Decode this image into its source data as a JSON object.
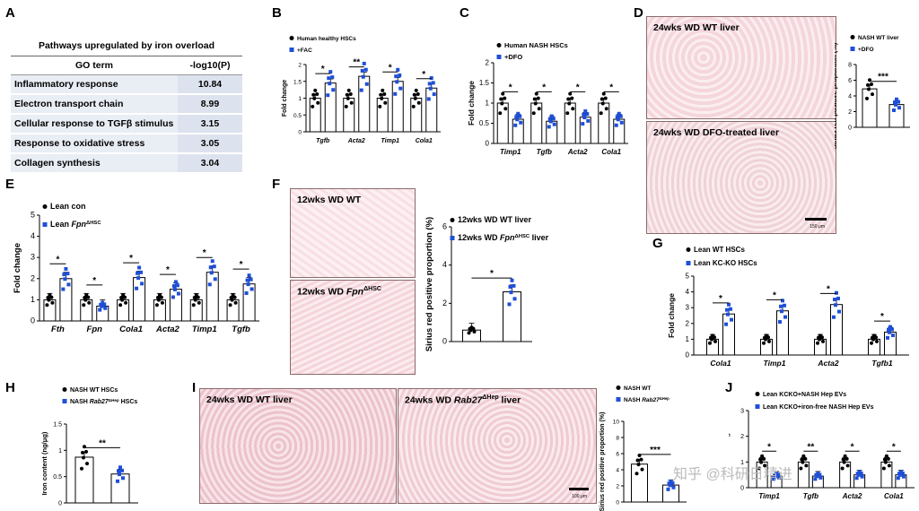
{
  "panels": {
    "A": {
      "letter": "A",
      "table_title": "Pathways upregulated by iron overload",
      "col_term": "GO term",
      "col_value": "-log10(P)",
      "rows": [
        {
          "term": "Inflammatory response",
          "value": "10.84"
        },
        {
          "term": "Electron transport chain",
          "value": "8.99"
        },
        {
          "term": "Cellular response to TGFβ stimulus",
          "value": "3.15"
        },
        {
          "term": "Response to oxidative stress",
          "value": "3.05"
        },
        {
          "term": "Collagen synthesis",
          "value": "3.04"
        }
      ]
    },
    "B": {
      "letter": "B",
      "ylabel": "Fold change",
      "legend": [
        "Human healthy HSCs",
        "+FAC"
      ],
      "sig": [
        "*",
        "**",
        "*",
        "*"
      ]
    },
    "C": {
      "letter": "C",
      "ylabel": "Fold change",
      "legend": [
        "Human NASH HSCs",
        "+DFO"
      ],
      "sig": [
        "*",
        "*",
        "*",
        "*"
      ]
    },
    "D": {
      "letter": "D",
      "img1": "24wks WD WT liver",
      "img2": "24wks WD DFO-treated liver",
      "ylabel": "Sirius red positive proportion (%)",
      "legend": [
        "NASH WT liver",
        "+DFO"
      ],
      "sig": [
        "***"
      ],
      "scale": "150 μm"
    },
    "E": {
      "letter": "E",
      "ylabel": "Fold change",
      "legend": [
        "Lean con",
        "Lean Fpn",
        "ΔHSC"
      ],
      "sig": [
        "*",
        "*",
        "*",
        "*",
        "*",
        "*"
      ]
    },
    "F": {
      "letter": "F",
      "img1": "12wks WD WT",
      "img2_a": "12wks WD ",
      "img2_b": "Fpn",
      "img2_c": "ΔHSC",
      "ylabel": "Sirius red positive proportion (%)",
      "legend": [
        "12wks WD WT liver",
        "12wks WD Fpn",
        "ΔHSC",
        " liver"
      ],
      "sig": [
        "*"
      ]
    },
    "G": {
      "letter": "G",
      "ylabel": "Fold change",
      "legend": [
        "Lean WT HSCs",
        "Lean KC-KO HSCs"
      ],
      "sig": [
        "*",
        "*",
        "*",
        "*"
      ]
    },
    "H": {
      "letter": "H",
      "ylabel": "Iron content (ng/μg)",
      "legend": [
        "NASH WT HSCs",
        "NASH Rab27",
        "ΔHep",
        " HSCs"
      ],
      "sig": [
        "**"
      ]
    },
    "I": {
      "letter": "I",
      "img1": "24wks WD WT liver",
      "img2_a": "24wks WD ",
      "img2_b": "Rab27",
      "img2_c": "ΔHep",
      "img2_d": " liver",
      "ylabel": "Sirius red positive proportion (%)",
      "legend": [
        "NASH WT",
        "NASH Rab27",
        "ΔHep"
      ],
      "sig": [
        "***"
      ],
      "scale": "100 μm"
    },
    "J": {
      "letter": "J",
      "ylabel": "Fold change",
      "legend": [
        "Lean KCKO+NASH Hep EVs",
        "Lean KCKO+iron-free NASH Hep EVs"
      ],
      "sig": [
        "*",
        "**",
        "*",
        "*"
      ]
    }
  },
  "watermark": "知乎 @科研日精进",
  "chart_data": [
    {
      "id": "B",
      "type": "bar",
      "categories": [
        "Tgfb",
        "Acta2",
        "Timp1",
        "Cola1"
      ],
      "ylim": [
        0,
        2.0
      ],
      "yticks": [
        0,
        0.5,
        1.0,
        1.5,
        2.0
      ],
      "colors": [
        "#000000",
        "#1f4fd8"
      ],
      "series": [
        {
          "name": "Human healthy HSCs",
          "values": [
            1.0,
            1.0,
            1.0,
            1.0
          ]
        },
        {
          "name": "+FAC",
          "values": [
            1.45,
            1.65,
            1.5,
            1.3
          ]
        }
      ]
    },
    {
      "id": "C",
      "type": "bar",
      "categories": [
        "Timp1",
        "Tgfb",
        "Acta2",
        "Cola1"
      ],
      "ylim": [
        0,
        2.0
      ],
      "yticks": [
        0,
        0.5,
        1.0,
        1.5,
        2.0
      ],
      "colors": [
        "#000000",
        "#1f4fd8"
      ],
      "series": [
        {
          "name": "Human NASH HSCs",
          "values": [
            1.0,
            1.0,
            1.0,
            1.0
          ]
        },
        {
          "name": "+DFO",
          "values": [
            0.6,
            0.55,
            0.65,
            0.6
          ]
        }
      ]
    },
    {
      "id": "D",
      "type": "bar",
      "categories": [
        "NASH WT liver",
        "+DFO"
      ],
      "ylim": [
        0,
        8
      ],
      "yticks": [
        0,
        2,
        4,
        6,
        8
      ],
      "colors": [
        "#000000",
        "#1f4fd8"
      ],
      "values": [
        4.9,
        2.9
      ]
    },
    {
      "id": "E",
      "type": "bar",
      "categories": [
        "Fth",
        "Fpn",
        "Cola1",
        "Acta2",
        "Timp1",
        "Tgfb"
      ],
      "ylim": [
        0,
        5
      ],
      "yticks": [
        0,
        1,
        2,
        3,
        4,
        5
      ],
      "colors": [
        "#000000",
        "#1f4fd8"
      ],
      "series": [
        {
          "name": "Lean con",
          "values": [
            1.0,
            1.0,
            1.0,
            1.0,
            1.0,
            1.0
          ]
        },
        {
          "name": "Lean FpnΔHSC",
          "values": [
            2.0,
            0.7,
            2.05,
            1.5,
            2.3,
            1.75
          ]
        }
      ]
    },
    {
      "id": "F",
      "type": "bar",
      "categories": [
        "12wks WD WT liver",
        "12wks WD FpnΔHSC liver"
      ],
      "ylim": [
        0,
        6
      ],
      "yticks": [
        0,
        2,
        4,
        6
      ],
      "colors": [
        "#000000",
        "#1f4fd8"
      ],
      "values": [
        0.6,
        2.6
      ]
    },
    {
      "id": "G",
      "type": "bar",
      "categories": [
        "Cola1",
        "Timp1",
        "Acta2",
        "Tgfb1"
      ],
      "ylim": [
        0,
        5
      ],
      "yticks": [
        0,
        1,
        2,
        3,
        4,
        5
      ],
      "colors": [
        "#000000",
        "#1f4fd8"
      ],
      "series": [
        {
          "name": "Lean WT HSCs",
          "values": [
            1.0,
            1.0,
            1.0,
            1.0
          ]
        },
        {
          "name": "Lean KC-KO HSCs",
          "values": [
            2.6,
            2.8,
            3.2,
            1.45
          ]
        }
      ]
    },
    {
      "id": "H",
      "type": "bar",
      "categories": [
        "NASH WT HSCs",
        "NASH Rab27ΔHep HSCs"
      ],
      "ylim": [
        0,
        1.5
      ],
      "yticks": [
        0.0,
        0.5,
        1.0,
        1.5
      ],
      "colors": [
        "#000000",
        "#1f4fd8"
      ],
      "values": [
        0.87,
        0.55
      ]
    },
    {
      "id": "I",
      "type": "bar",
      "categories": [
        "NASH WT",
        "NASH Rab27ΔHep"
      ],
      "ylim": [
        0,
        10
      ],
      "yticks": [
        0,
        2,
        4,
        6,
        8,
        10
      ],
      "colors": [
        "#000000",
        "#1f4fd8"
      ],
      "values": [
        4.7,
        2.1
      ]
    },
    {
      "id": "J",
      "type": "bar",
      "categories": [
        "Timp1",
        "Tgfb",
        "Acta2",
        "Cola1"
      ],
      "ylim": [
        0,
        3
      ],
      "yticks": [
        0,
        1,
        2,
        3
      ],
      "colors": [
        "#000000",
        "#1f4fd8"
      ],
      "series": [
        {
          "name": "Lean KCKO+NASH Hep EVs",
          "values": [
            1.0,
            1.0,
            1.0,
            1.0
          ]
        },
        {
          "name": "Lean KCKO+iron-free NASH Hep EVs",
          "values": [
            0.45,
            0.45,
            0.5,
            0.5
          ]
        }
      ]
    }
  ]
}
